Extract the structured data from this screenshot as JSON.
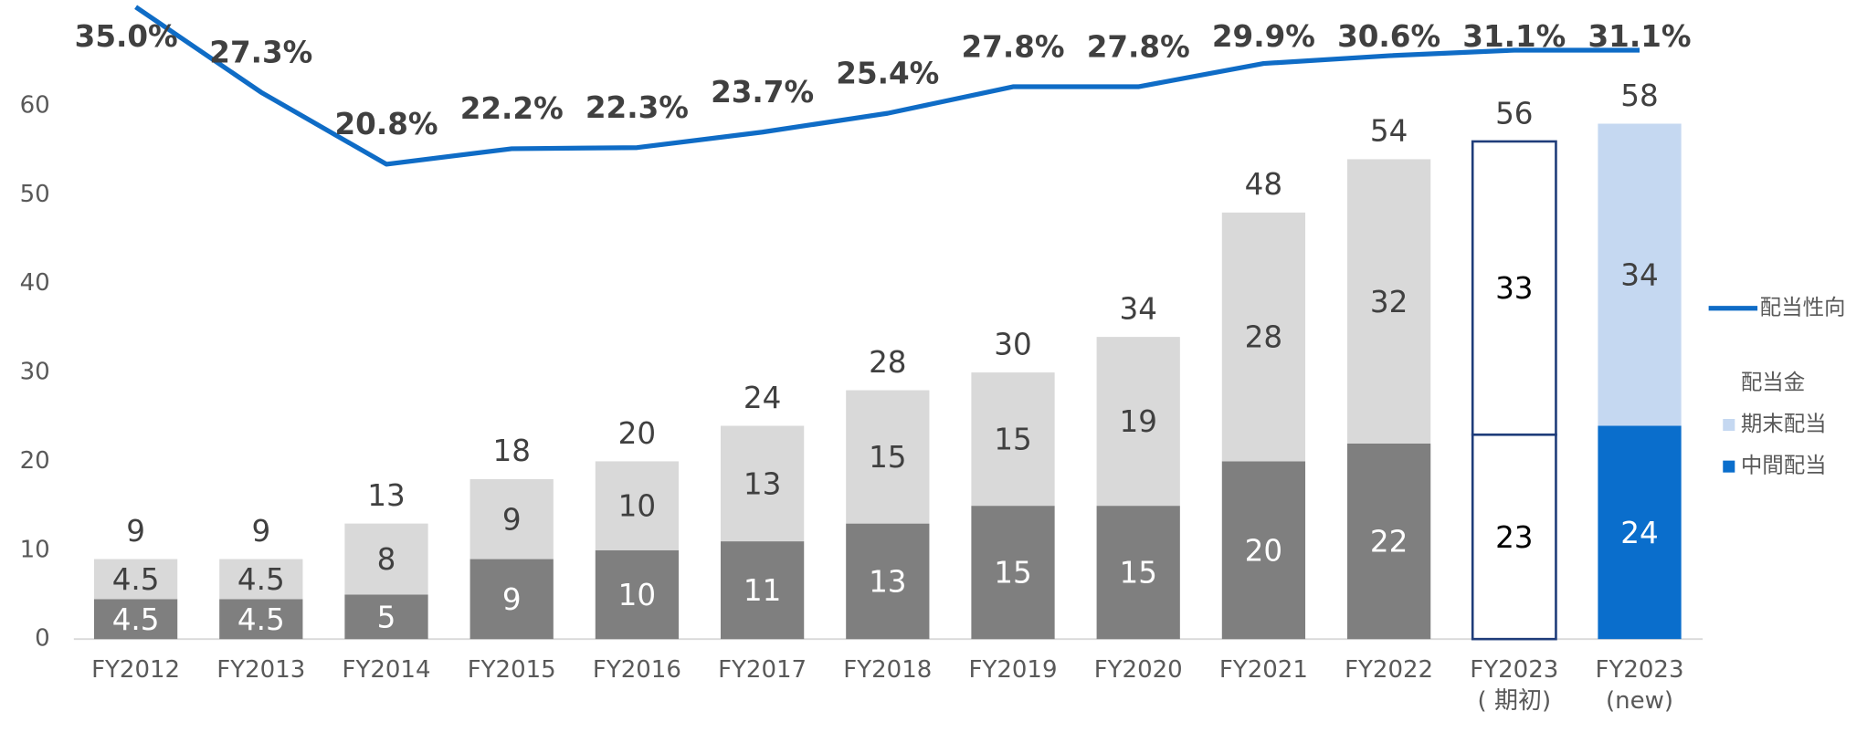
{
  "chart_data": {
    "type": "bar",
    "categories": [
      "FY2012",
      "FY2013",
      "FY2014",
      "FY2015",
      "FY2016",
      "FY2017",
      "FY2018",
      "FY2019",
      "FY2020",
      "FY2021",
      "FY2022",
      "FY2023\n( 期初)",
      "FY2023\n(new)"
    ],
    "series": [
      {
        "name": "中間配当",
        "type": "bar",
        "color": "#0a6ecc",
        "values": [
          4.5,
          4.5,
          5,
          9,
          10,
          11,
          13,
          15,
          15,
          20,
          22,
          23,
          24
        ],
        "bar_colors": [
          "#7f7f7f",
          "#7f7f7f",
          "#7f7f7f",
          "#7f7f7f",
          "#7f7f7f",
          "#7f7f7f",
          "#7f7f7f",
          "#7f7f7f",
          "#7f7f7f",
          "#7f7f7f",
          "#7f7f7f",
          "#ffffff",
          "#0a6ecc"
        ],
        "label_colors": [
          "#ffffff",
          "#ffffff",
          "#ffffff",
          "#ffffff",
          "#ffffff",
          "#ffffff",
          "#ffffff",
          "#ffffff",
          "#ffffff",
          "#ffffff",
          "#ffffff",
          "#000000",
          "#ffffff"
        ]
      },
      {
        "name": "期末配当",
        "type": "bar",
        "color": "#c5d8f1",
        "values": [
          4.5,
          4.5,
          8,
          9,
          10,
          13,
          15,
          15,
          19,
          28,
          32,
          33,
          34
        ],
        "bar_colors": [
          "#d9d9d9",
          "#d9d9d9",
          "#d9d9d9",
          "#d9d9d9",
          "#d9d9d9",
          "#d9d9d9",
          "#d9d9d9",
          "#d9d9d9",
          "#d9d9d9",
          "#d9d9d9",
          "#d9d9d9",
          "#ffffff",
          "#c5d8f1"
        ],
        "label_colors": [
          "#404040",
          "#404040",
          "#404040",
          "#404040",
          "#404040",
          "#404040",
          "#404040",
          "#404040",
          "#404040",
          "#404040",
          "#404040",
          "#000000",
          "#404040"
        ]
      },
      {
        "name": "配当性向",
        "type": "line",
        "axis": "y2",
        "color": "#0f6cc6",
        "values": [
          35.0,
          27.3,
          20.8,
          22.2,
          22.3,
          23.7,
          25.4,
          27.8,
          27.8,
          29.9,
          30.6,
          31.1,
          31.1
        ],
        "value_labels": [
          "35.0%",
          "27.3%",
          "20.8%",
          "22.2%",
          "22.3%",
          "23.7%",
          "25.4%",
          "27.8%",
          "27.8%",
          "29.9%",
          "30.6%",
          "31.1%",
          "31.1%"
        ]
      }
    ],
    "totals": [
      9,
      9,
      13,
      18,
      20,
      24,
      28,
      30,
      34,
      48,
      54,
      56,
      58
    ],
    "bar_stroke": [
      null,
      null,
      null,
      null,
      null,
      null,
      null,
      null,
      null,
      null,
      null,
      "#1f3d7a",
      null
    ],
    "legend_title": "配当金",
    "legend": "right",
    "grid": false,
    "ylim": [
      0,
      71.5
    ],
    "yticks": [
      0,
      10,
      20,
      30,
      40,
      50,
      60
    ],
    "y2lim": [
      -22.1,
      35.3
    ]
  }
}
